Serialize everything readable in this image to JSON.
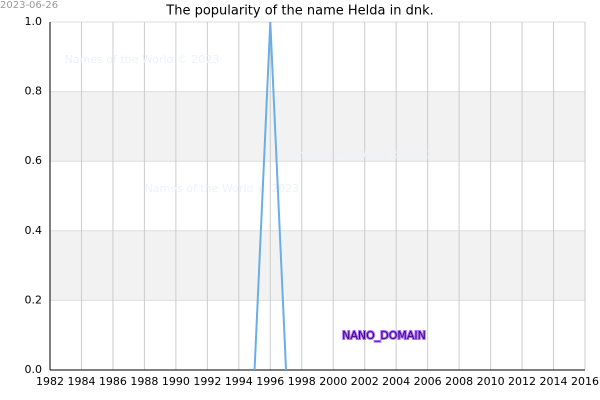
{
  "stamp": "2023-06-26",
  "watermarks": [
    "Names of the World © 2023",
    "Names of the World © 2023",
    "Names of the World © 2023"
  ],
  "label": "NANO_DOMAIN",
  "chart_data": {
    "type": "line",
    "title": "The popularity of the name Helda in dnk.",
    "x": [
      1995,
      1996,
      1997
    ],
    "series": [
      {
        "name": "Helda",
        "color": "#6aaee8",
        "values": [
          0,
          1,
          0
        ]
      }
    ],
    "xlim": [
      1982,
      2016
    ],
    "xticks": [
      1982,
      1984,
      1986,
      1988,
      1990,
      1992,
      1994,
      1996,
      1998,
      2000,
      2002,
      2004,
      2006,
      2008,
      2010,
      2012,
      2014,
      2016
    ],
    "ylim": [
      0,
      1
    ],
    "yticks": [
      {
        "value": 0,
        "label": "0.0"
      },
      0.2,
      0.4,
      0.6,
      0.8,
      {
        "value": 1,
        "label": "1.0"
      }
    ],
    "grid": true
  }
}
